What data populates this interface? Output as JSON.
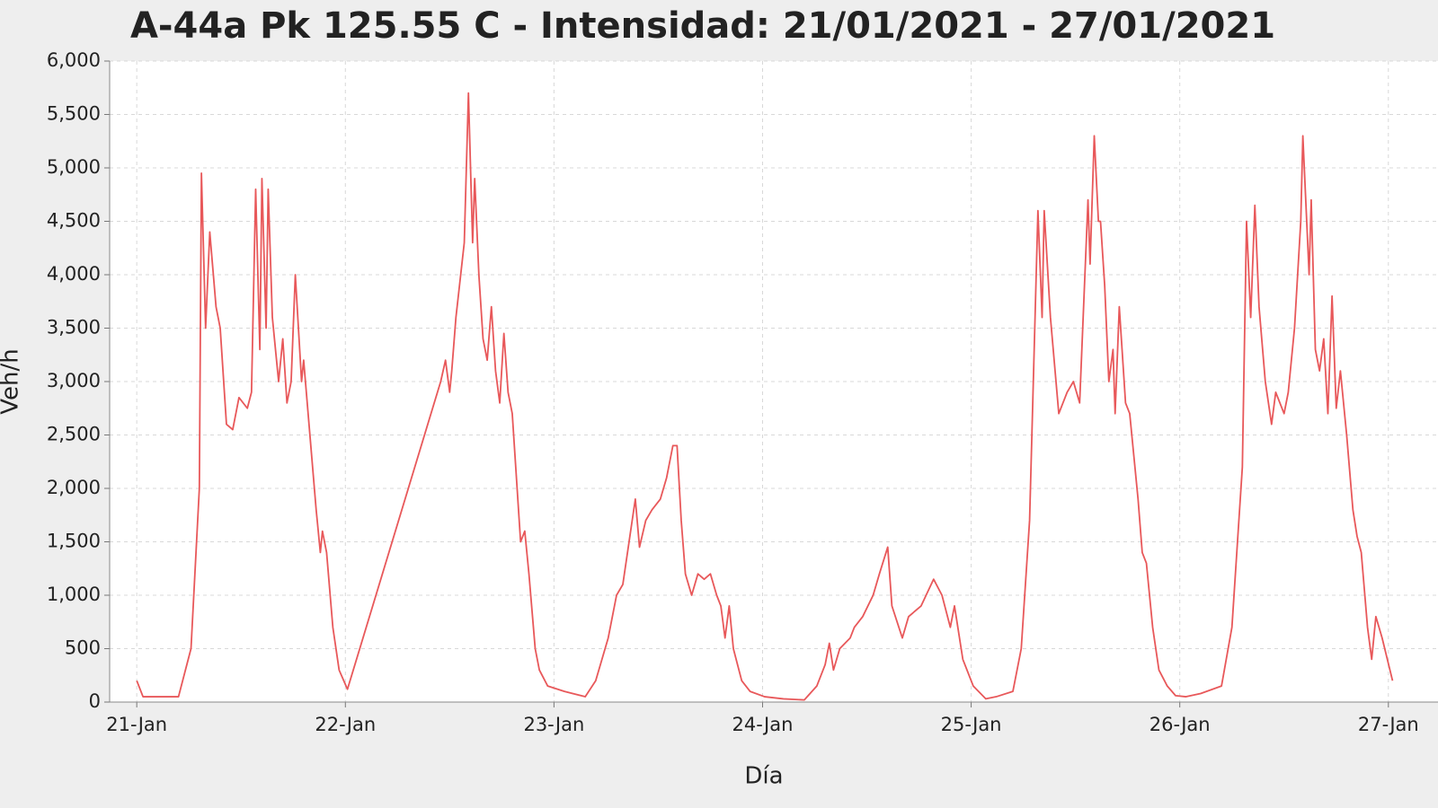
{
  "chart_data": {
    "type": "line",
    "title": "A-44a Pk 125.55 C - Intensidad: 21/01/2021 - 27/01/2021",
    "xlabel": "Día",
    "ylabel": "Veh/h",
    "xlim": [
      20.87,
      27.1
    ],
    "ylim": [
      0,
      6000
    ],
    "xticks": [
      {
        "value": 21,
        "label": "21-Jan"
      },
      {
        "value": 22,
        "label": "22-Jan"
      },
      {
        "value": 23,
        "label": "23-Jan"
      },
      {
        "value": 24,
        "label": "24-Jan"
      },
      {
        "value": 25,
        "label": "25-Jan"
      },
      {
        "value": 26,
        "label": "26-Jan"
      },
      {
        "value": 27,
        "label": "27-Jan"
      }
    ],
    "yticks": [
      0,
      500,
      {
        "value": 1000,
        "label": "1,000"
      },
      {
        "value": 1500,
        "label": "1,500"
      },
      {
        "value": 2000,
        "label": "2,000"
      },
      {
        "value": 2500,
        "label": "2,500"
      },
      {
        "value": 3000,
        "label": "3,000"
      },
      {
        "value": 3500,
        "label": "3,500"
      },
      {
        "value": 4000,
        "label": "4,000"
      },
      {
        "value": 4500,
        "label": "4,500"
      },
      {
        "value": 5000,
        "label": "5,000"
      },
      {
        "value": 5500,
        "label": "5,500"
      },
      {
        "value": 6000,
        "label": "6,000"
      }
    ],
    "grid": true,
    "series": [
      {
        "color": "#e8585a",
        "x": [
          21.0,
          21.03,
          21.2,
          21.26,
          21.3,
          21.31,
          21.33,
          21.35,
          21.38,
          21.4,
          21.43,
          21.46,
          21.49,
          21.53,
          21.55,
          21.57,
          21.59,
          21.6,
          21.62,
          21.63,
          21.65,
          21.68,
          21.7,
          21.72,
          21.74,
          21.76,
          21.79,
          21.8,
          21.83,
          21.86,
          21.88,
          21.89,
          21.91,
          21.94,
          21.97,
          22.01,
          22.457,
          22.48,
          22.5,
          22.51,
          22.53,
          22.57,
          22.59,
          22.61,
          22.62,
          22.64,
          22.66,
          22.68,
          22.7,
          22.72,
          22.74,
          22.76,
          22.78,
          22.8,
          22.82,
          22.84,
          22.86,
          22.88,
          22.91,
          22.93,
          22.97,
          23.05,
          23.15,
          23.2,
          23.26,
          23.3,
          23.33,
          23.36,
          23.39,
          23.41,
          23.44,
          23.47,
          23.51,
          23.54,
          23.57,
          23.59,
          23.61,
          23.63,
          23.66,
          23.69,
          23.72,
          23.75,
          23.78,
          23.8,
          23.82,
          23.84,
          23.86,
          23.9,
          23.94,
          24.01,
          24.1,
          24.2,
          24.26,
          24.3,
          24.32,
          24.34,
          24.37,
          24.42,
          24.44,
          24.48,
          24.53,
          24.56,
          24.6,
          24.62,
          24.67,
          24.7,
          24.76,
          24.82,
          24.86,
          24.9,
          24.92,
          24.96,
          25.01,
          25.07,
          25.12,
          25.2,
          25.24,
          25.28,
          25.32,
          25.34,
          25.35,
          25.38,
          25.42,
          25.46,
          25.49,
          25.52,
          25.56,
          25.57,
          25.59,
          25.61,
          25.62,
          25.64,
          25.66,
          25.68,
          25.69,
          25.71,
          25.74,
          25.76,
          25.8,
          25.82,
          25.84,
          25.87,
          25.9,
          25.94,
          25.98,
          26.03,
          26.1,
          26.2,
          26.25,
          26.3,
          26.32,
          26.34,
          26.36,
          26.38,
          26.41,
          26.44,
          26.46,
          26.5,
          26.52,
          26.55,
          26.58,
          26.59,
          26.62,
          26.63,
          26.65,
          26.67,
          26.69,
          26.71,
          26.73,
          26.75,
          26.77,
          26.8,
          26.83,
          26.85,
          26.87,
          26.9,
          26.92,
          26.94,
          26.97,
          27.02
        ],
        "values": [
          200,
          50,
          50,
          500,
          2000,
          4950,
          3500,
          4400,
          3700,
          3500,
          2600,
          2550,
          2850,
          2750,
          2900,
          4800,
          3300,
          4900,
          3500,
          4800,
          3600,
          3000,
          3400,
          2800,
          3000,
          4000,
          3000,
          3200,
          2500,
          1800,
          1400,
          1600,
          1400,
          700,
          300,
          120,
          3000,
          3200,
          2900,
          3100,
          3600,
          4300,
          5700,
          4300,
          4900,
          4000,
          3400,
          3200,
          3700,
          3100,
          2800,
          3450,
          2900,
          2700,
          2100,
          1500,
          1600,
          1200,
          500,
          300,
          150,
          100,
          50,
          200,
          600,
          1000,
          1100,
          1500,
          1900,
          1450,
          1700,
          1800,
          1900,
          2100,
          2400,
          2400,
          1700,
          1200,
          1000,
          1200,
          1150,
          1200,
          1000,
          900,
          600,
          900,
          500,
          200,
          100,
          50,
          30,
          20,
          150,
          350,
          550,
          300,
          500,
          600,
          700,
          800,
          1000,
          1200,
          1450,
          900,
          600,
          800,
          900,
          1150,
          1000,
          700,
          900,
          400,
          150,
          30,
          50,
          100,
          500,
          1700,
          4600,
          3600,
          4600,
          3600,
          2700,
          2900,
          3000,
          2800,
          4700,
          4100,
          5300,
          4500,
          4500,
          3900,
          3000,
          3300,
          2700,
          3700,
          2800,
          2700,
          1900,
          1400,
          1300,
          700,
          300,
          150,
          60,
          50,
          80,
          150,
          700,
          2200,
          4500,
          3600,
          4650,
          3700,
          3000,
          2600,
          2900,
          2700,
          2900,
          3500,
          4500,
          5300,
          4000,
          4700,
          3300,
          3100,
          3400,
          2700,
          3800,
          2750,
          3100,
          2500,
          1800,
          1550,
          1400,
          700,
          400,
          800,
          600,
          200
        ]
      }
    ]
  }
}
